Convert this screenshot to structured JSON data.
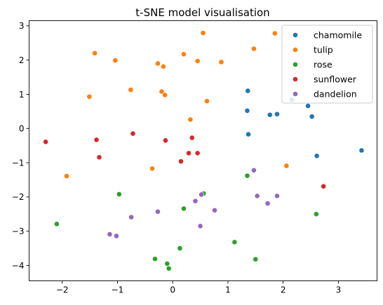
{
  "chart_data": {
    "type": "scatter",
    "title": "t-SNE model visualisation",
    "xlabel": "",
    "ylabel": "",
    "xlim": [
      -2.6,
      3.7
    ],
    "ylim": [
      -4.45,
      3.15
    ],
    "xticks": [
      -2,
      -1,
      0,
      1,
      2,
      3
    ],
    "yticks": [
      3,
      2,
      1,
      0,
      -1,
      -2,
      -3,
      -4
    ],
    "xtick_labels": [
      "−2",
      "−1",
      "0",
      "1",
      "2",
      "3"
    ],
    "ytick_labels": [
      "3",
      "2",
      "1",
      "0",
      "−1",
      "−2",
      "−3",
      "−4"
    ],
    "grid": false,
    "legend_position": "top-right",
    "series": [
      {
        "name": "chamomile",
        "color": "#1f77b4",
        "points": [
          [
            1.36,
            1.1
          ],
          [
            1.35,
            0.52
          ],
          [
            1.37,
            -0.17
          ],
          [
            1.76,
            0.4
          ],
          [
            1.89,
            0.42
          ],
          [
            2.16,
            0.84
          ],
          [
            2.45,
            0.66
          ],
          [
            2.52,
            0.35
          ],
          [
            2.61,
            -0.8
          ],
          [
            3.42,
            -0.64
          ]
        ]
      },
      {
        "name": "tulip",
        "color": "#ff7f0e",
        "points": [
          [
            -1.41,
            2.2
          ],
          [
            -1.04,
            1.99
          ],
          [
            -1.51,
            0.93
          ],
          [
            -0.76,
            1.13
          ],
          [
            -0.27,
            1.9
          ],
          [
            -0.17,
            1.81
          ],
          [
            0.2,
            2.17
          ],
          [
            0.45,
            1.97
          ],
          [
            0.88,
            1.94
          ],
          [
            0.55,
            2.79
          ],
          [
            -0.2,
            1.08
          ],
          [
            -0.14,
            0.98
          ],
          [
            0.62,
            0.8
          ],
          [
            0.32,
            0.26
          ],
          [
            -0.37,
            -1.17
          ],
          [
            -1.92,
            -1.39
          ],
          [
            1.47,
            2.33
          ],
          [
            1.85,
            2.78
          ],
          [
            2.06,
            -1.09
          ]
        ]
      },
      {
        "name": "rose",
        "color": "#2ca02c",
        "points": [
          [
            -2.1,
            -2.79
          ],
          [
            -0.97,
            -1.92
          ],
          [
            0.2,
            -2.34
          ],
          [
            0.56,
            -1.9
          ],
          [
            1.35,
            -1.38
          ],
          [
            2.6,
            -2.5
          ],
          [
            0.13,
            -3.5
          ],
          [
            1.12,
            -3.32
          ],
          [
            -0.32,
            -3.81
          ],
          [
            -0.1,
            -3.95
          ],
          [
            -0.07,
            -4.09
          ],
          [
            1.5,
            -3.82
          ]
        ]
      },
      {
        "name": "sunflower",
        "color": "#d62728",
        "points": [
          [
            -2.3,
            -0.39
          ],
          [
            -1.38,
            -0.33
          ],
          [
            -1.33,
            -0.84
          ],
          [
            -0.72,
            -0.15
          ],
          [
            -0.13,
            -0.35
          ],
          [
            0.15,
            -0.96
          ],
          [
            0.29,
            -0.72
          ],
          [
            0.35,
            -0.27
          ],
          [
            0.45,
            -0.72
          ],
          [
            2.73,
            -1.69
          ]
        ]
      },
      {
        "name": "dandelion",
        "color": "#9467bd",
        "points": [
          [
            -1.14,
            -3.09
          ],
          [
            -1.02,
            -3.14
          ],
          [
            -0.75,
            -2.59
          ],
          [
            -0.27,
            -2.43
          ],
          [
            0.41,
            -2.12
          ],
          [
            0.52,
            -1.93
          ],
          [
            0.5,
            -2.85
          ],
          [
            0.76,
            -2.39
          ],
          [
            1.47,
            -1.22
          ],
          [
            1.53,
            -1.97
          ],
          [
            1.72,
            -2.19
          ],
          [
            1.89,
            -1.97
          ]
        ]
      }
    ]
  }
}
